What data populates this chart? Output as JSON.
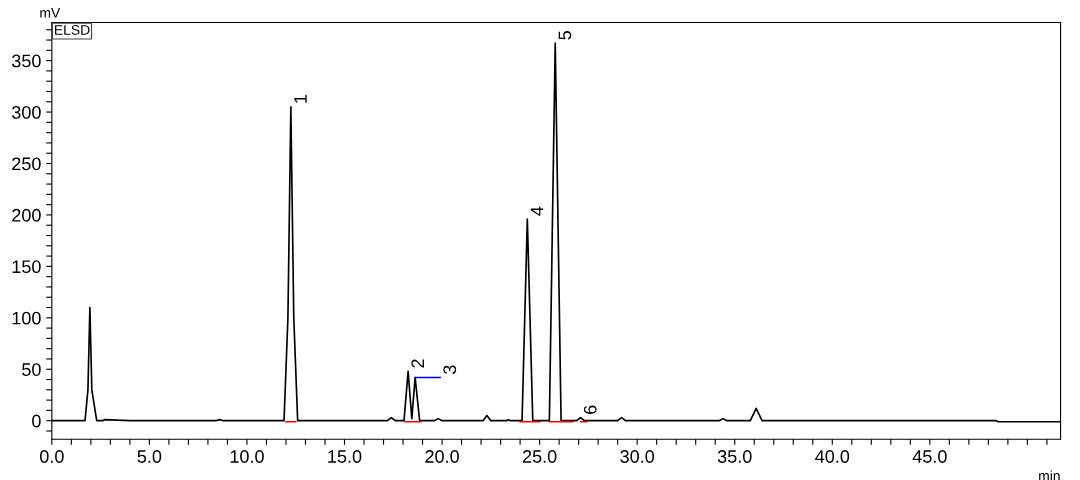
{
  "chart_data": {
    "type": "line",
    "xlabel": "min",
    "ylabel": "mV",
    "annotations": [
      "ELSD",
      {
        "text": "1",
        "x": 12.25,
        "y": 305
      },
      {
        "text": "2",
        "x": 18.26,
        "y": 48
      },
      {
        "text": "3",
        "x": 19.9,
        "y": 42
      },
      {
        "text": "4",
        "x": 24.37,
        "y": 196
      },
      {
        "text": "5",
        "x": 25.8,
        "y": 367
      },
      {
        "text": "6",
        "x": 27.1,
        "y": 3
      }
    ],
    "series": [
      {
        "color": "#000000",
        "x": [
          0,
          1.7,
          1.85,
          1.95,
          2.05,
          2.3,
          2.6,
          2.7,
          4,
          8.4,
          8.6,
          8.8,
          11.9,
          12.1,
          12.25,
          12.4,
          12.6,
          17.2,
          17.4,
          17.6,
          18.05,
          18.26,
          18.45,
          18.62,
          18.85,
          19.6,
          19.8,
          20.0,
          22.1,
          22.3,
          22.5,
          23.3,
          23.4,
          23.5,
          24.1,
          24.37,
          24.65,
          25.5,
          25.8,
          26.1,
          26.9,
          27.1,
          27.3,
          29.0,
          29.2,
          29.4,
          34.2,
          34.4,
          34.6,
          35.8,
          36.1,
          36.4,
          46.8,
          48.4,
          48.5,
          51.7
        ],
        "values": [
          0,
          0,
          30,
          110,
          30,
          0,
          0,
          1,
          0,
          0,
          1,
          0,
          0,
          100,
          305,
          100,
          0,
          0,
          3,
          0,
          0,
          48,
          2,
          42,
          0,
          0,
          2,
          0,
          0,
          5,
          0,
          0,
          1,
          0,
          0,
          196,
          0,
          0,
          367,
          0,
          0,
          3,
          0,
          0,
          3,
          0,
          0,
          2,
          0,
          0,
          12,
          0,
          0,
          0,
          -1,
          -1
        ]
      },
      {
        "color": "#ff0000",
        "x": [
          12.0,
          12.5
        ],
        "values": [
          -1,
          -1
        ]
      },
      {
        "color": "#ff0000",
        "x": [
          18.1,
          18.9
        ],
        "values": [
          -1,
          -1
        ]
      },
      {
        "color": "#ff0000",
        "x": [
          24.0,
          25.0
        ],
        "values": [
          -1,
          -1
        ]
      },
      {
        "color": "#ff0000",
        "x": [
          25.5,
          26.7
        ],
        "values": [
          -1,
          -1
        ]
      },
      {
        "color": "#ff0000",
        "x": [
          27.1,
          27.4
        ],
        "values": [
          -1,
          -1
        ]
      },
      {
        "color": "#0000ff",
        "x": [
          18.62,
          19.9
        ],
        "values": [
          42,
          42
        ]
      }
    ],
    "xlim": [
      0,
      51.7
    ],
    "ylim": [
      -18,
      387
    ],
    "xticks": [
      {
        "value": 0,
        "label": "0.0"
      },
      {
        "value": 1,
        "label": null
      },
      {
        "value": 2,
        "label": null
      },
      {
        "value": 3,
        "label": null
      },
      {
        "value": 4,
        "label": null
      },
      {
        "value": 5,
        "label": "5.0"
      },
      {
        "value": 6,
        "label": null
      },
      {
        "value": 7,
        "label": null
      },
      {
        "value": 8,
        "label": null
      },
      {
        "value": 9,
        "label": null
      },
      {
        "value": 10,
        "label": "10.0"
      },
      {
        "value": 11,
        "label": null
      },
      {
        "value": 12,
        "label": null
      },
      {
        "value": 13,
        "label": null
      },
      {
        "value": 14,
        "label": null
      },
      {
        "value": 15,
        "label": "15.0"
      },
      {
        "value": 16,
        "label": null
      },
      {
        "value": 17,
        "label": null
      },
      {
        "value": 18,
        "label": null
      },
      {
        "value": 19,
        "label": null
      },
      {
        "value": 20,
        "label": "20.0"
      },
      {
        "value": 21,
        "label": null
      },
      {
        "value": 22,
        "label": null
      },
      {
        "value": 23,
        "label": null
      },
      {
        "value": 24,
        "label": null
      },
      {
        "value": 25,
        "label": "25.0"
      },
      {
        "value": 26,
        "label": null
      },
      {
        "value": 27,
        "label": null
      },
      {
        "value": 28,
        "label": null
      },
      {
        "value": 29,
        "label": null
      },
      {
        "value": 30,
        "label": "30.0"
      },
      {
        "value": 31,
        "label": null
      },
      {
        "value": 32,
        "label": null
      },
      {
        "value": 33,
        "label": null
      },
      {
        "value": 34,
        "label": null
      },
      {
        "value": 35,
        "label": "35.0"
      },
      {
        "value": 36,
        "label": null
      },
      {
        "value": 37,
        "label": null
      },
      {
        "value": 38,
        "label": null
      },
      {
        "value": 39,
        "label": null
      },
      {
        "value": 40,
        "label": "40.0"
      },
      {
        "value": 41,
        "label": null
      },
      {
        "value": 42,
        "label": null
      },
      {
        "value": 43,
        "label": null
      },
      {
        "value": 44,
        "label": null
      },
      {
        "value": 45,
        "label": "45.0"
      },
      {
        "value": 46,
        "label": null
      },
      {
        "value": 47,
        "label": null
      },
      {
        "value": 48,
        "label": null
      },
      {
        "value": 49,
        "label": null
      },
      {
        "value": 50,
        "label": null
      },
      {
        "value": 51,
        "label": null
      }
    ],
    "yticks": [
      {
        "value": -10,
        "label": null
      },
      0,
      {
        "value": 10,
        "label": null
      },
      {
        "value": 20,
        "label": null
      },
      {
        "value": 30,
        "label": null
      },
      {
        "value": 40,
        "label": null
      },
      50,
      {
        "value": 60,
        "label": null
      },
      {
        "value": 70,
        "label": null
      },
      {
        "value": 80,
        "label": null
      },
      {
        "value": 90,
        "label": null
      },
      100,
      {
        "value": 110,
        "label": null
      },
      {
        "value": 120,
        "label": null
      },
      {
        "value": 130,
        "label": null
      },
      {
        "value": 140,
        "label": null
      },
      150,
      {
        "value": 160,
        "label": null
      },
      {
        "value": 170,
        "label": null
      },
      {
        "value": 180,
        "label": null
      },
      {
        "value": 190,
        "label": null
      },
      200,
      {
        "value": 210,
        "label": null
      },
      {
        "value": 220,
        "label": null
      },
      {
        "value": 230,
        "label": null
      },
      {
        "value": 240,
        "label": null
      },
      250,
      {
        "value": 260,
        "label": null
      },
      {
        "value": 270,
        "label": null
      },
      {
        "value": 280,
        "label": null
      },
      {
        "value": 290,
        "label": null
      },
      300,
      {
        "value": 310,
        "label": null
      },
      {
        "value": 320,
        "label": null
      },
      {
        "value": 330,
        "label": null
      },
      {
        "value": 340,
        "label": null
      },
      350,
      {
        "value": 360,
        "label": null
      },
      {
        "value": 370,
        "label": null
      },
      {
        "value": 380,
        "label": null
      }
    ],
    "grid": false,
    "legend": false,
    "marker": "none",
    "line_style": "solid"
  }
}
